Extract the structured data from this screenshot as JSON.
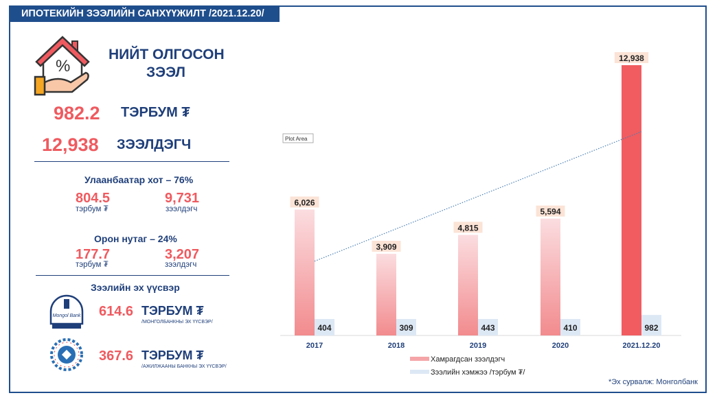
{
  "title": "ИПОТЕКИЙН ЗЭЭЛИЙН САНХҮҮЖИЛТ /2021.12.20/",
  "summary": {
    "heading_line1": "НИЙТ ОЛГОСОН",
    "heading_line2": "ЗЭЭЛ",
    "total_amount": "982.2",
    "total_amount_unit": "ТЭРБУМ ₮",
    "total_borrowers": "12,938",
    "total_borrowers_unit": "ЗЭЭЛДЭГЧ"
  },
  "regions": [
    {
      "title": "Улаанбаатар хот – 76%",
      "amount": "804.5",
      "amount_unit": "тэрбум ₮",
      "borrowers": "9,731",
      "borrowers_unit": "зээлдэгч"
    },
    {
      "title": "Орон нутаг – 24%",
      "amount": "177.7",
      "amount_unit": "тэрбум ₮",
      "borrowers": "3,207",
      "borrowers_unit": "зээлдэгч"
    }
  ],
  "sources": {
    "title": "Зээлийн эх үүсвэр",
    "items": [
      {
        "amount": "614.6",
        "unit": "ТЭРБУМ ₮",
        "note": "/МОНГОЛБАНКНЫ ЭХ ҮҮСВЭР/",
        "logo_text": "Монголбанк"
      },
      {
        "amount": "367.6",
        "unit": "ТЭРБУМ ₮",
        "note": "/АЖИЛЖААНЫ БАНКНЫ ЭХ ҮҮСВЭР/"
      }
    ]
  },
  "tooltip": "Plot Area",
  "footnote": "*Эх сурвалж: Монголбанк",
  "colors": {
    "navy": "#1f3f7a",
    "red": "#ef5a5f",
    "pink_light": "#fbdde0",
    "blue_light": "#dde8f5"
  },
  "chart_data": {
    "type": "bar",
    "categories": [
      "2017",
      "2018",
      "2019",
      "2020",
      "2021.12.20"
    ],
    "series": [
      {
        "name": "Хамрагдсан зээлдэгч",
        "values": [
          6026,
          3909,
          4815,
          5594,
          12938
        ],
        "labels": [
          "6,026",
          "3,909",
          "4,815",
          "5,594",
          "12,938"
        ]
      },
      {
        "name": "Зээлийн хэмжээ /тэрбум ₮/",
        "values": [
          404,
          309,
          443,
          410,
          982
        ],
        "labels": [
          "404",
          "309",
          "443",
          "410",
          "982"
        ]
      }
    ],
    "trendline": "linear, dotted, on Хамрагдсан зээлдэгч",
    "ylim": [
      0,
      12938
    ],
    "grid": false,
    "legend": "bottom-left"
  }
}
